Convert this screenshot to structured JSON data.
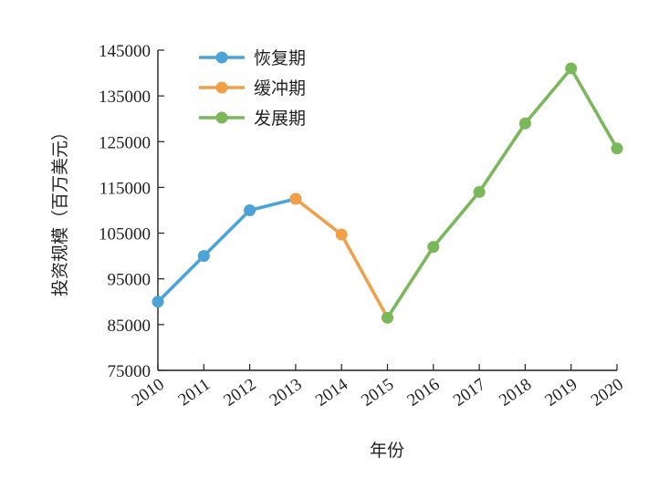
{
  "chart_data": {
    "type": "line",
    "title": "",
    "xlabel": "年份",
    "ylabel": "投资规模（百万美元）",
    "categories": [
      "2010",
      "2011",
      "2012",
      "2013",
      "2014",
      "2015",
      "2016",
      "2017",
      "2018",
      "2019",
      "2020"
    ],
    "yticks": [
      "75000",
      "85000",
      "95000",
      "105000",
      "115000",
      "125000",
      "135000",
      "145000"
    ],
    "ylim": [
      75000,
      145000
    ],
    "grid": false,
    "legend_position": "top-left",
    "series": [
      {
        "name": "恢复期",
        "color": "#4ba3d8",
        "x": [
          "2010",
          "2011",
          "2012",
          "2013"
        ],
        "values": [
          90000,
          100000,
          110000,
          112500
        ]
      },
      {
        "name": "缓冲期",
        "color": "#f0a04b",
        "x": [
          "2013",
          "2014",
          "2015"
        ],
        "values": [
          112500,
          104700,
          86500
        ]
      },
      {
        "name": "发展期",
        "color": "#7ab85b",
        "x": [
          "2015",
          "2016",
          "2017",
          "2018",
          "2019",
          "2020"
        ],
        "values": [
          86500,
          102000,
          114000,
          129000,
          141000,
          123500
        ]
      }
    ]
  }
}
